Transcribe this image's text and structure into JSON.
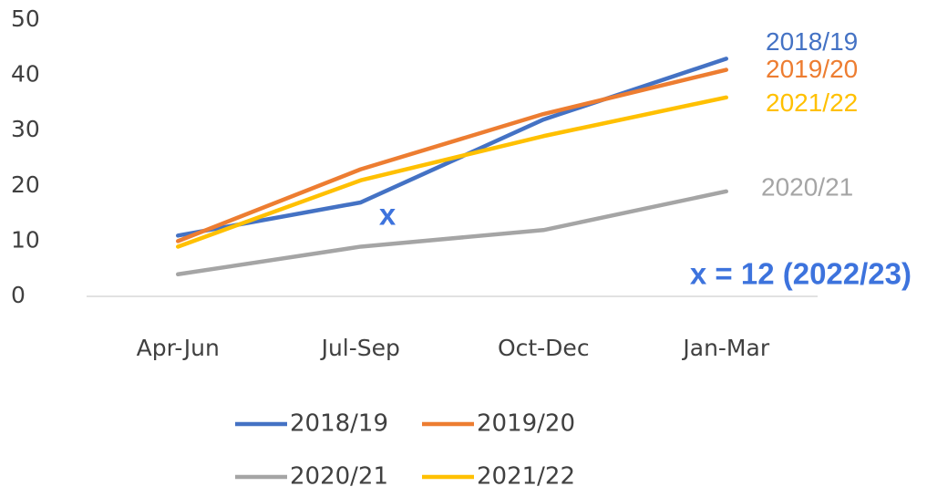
{
  "chart_data": {
    "type": "line",
    "categories": [
      "Apr-Jun",
      "Jul-Sep",
      "Oct-Dec",
      "Jan-Mar"
    ],
    "series": [
      {
        "name": "2018/19",
        "color": "#4472c4",
        "values": [
          11,
          17,
          32,
          43
        ]
      },
      {
        "name": "2019/20",
        "color": "#ed7d31",
        "values": [
          10,
          23,
          33,
          41
        ]
      },
      {
        "name": "2020/21",
        "color": "#a5a5a5",
        "values": [
          4,
          9,
          12,
          19
        ]
      },
      {
        "name": "2021/22",
        "color": "#ffc000",
        "values": [
          9,
          21,
          29,
          36
        ]
      }
    ],
    "annotations": [
      {
        "text": "x",
        "color": "#3d73dd"
      },
      {
        "text": "x = 12 (2022/23)",
        "color": "#3d73dd"
      }
    ],
    "ylim": [
      0,
      50
    ],
    "yticks": [
      0,
      10,
      20,
      30,
      40,
      50
    ],
    "grid": false,
    "legend": "bottom"
  }
}
